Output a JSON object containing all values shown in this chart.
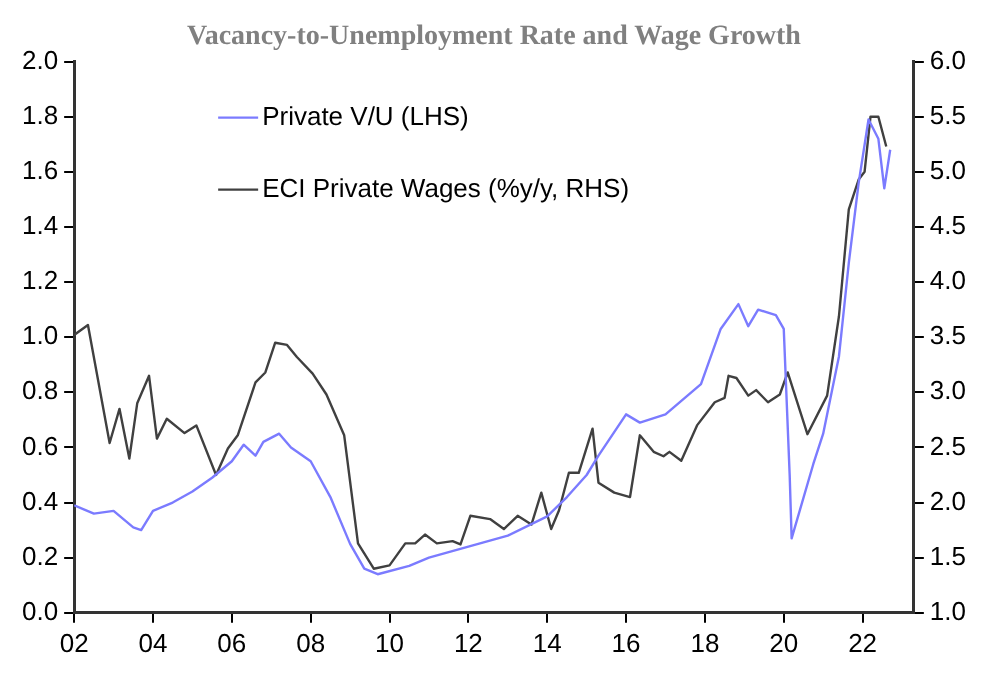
{
  "chart_data": {
    "type": "line",
    "title": "Vacancy-to-Unemployment Rate and Wage Growth",
    "xlim": [
      2002,
      2023.3
    ],
    "xticks": [
      {
        "value": 2002,
        "label": "02"
      },
      {
        "value": 2004,
        "label": "04"
      },
      {
        "value": 2006,
        "label": "06"
      },
      {
        "value": 2008,
        "label": "08"
      },
      {
        "value": 2010,
        "label": "10"
      },
      {
        "value": 2012,
        "label": "12"
      },
      {
        "value": 2014,
        "label": "14"
      },
      {
        "value": 2016,
        "label": "16"
      },
      {
        "value": 2018,
        "label": "18"
      },
      {
        "value": 2020,
        "label": "20"
      },
      {
        "value": 2022,
        "label": "22"
      }
    ],
    "ylim": [
      0,
      2
    ],
    "yticks": [
      {
        "value": 0,
        "label": "0.0"
      },
      0.2,
      0.4,
      0.6,
      0.8,
      {
        "value": 1,
        "label": "1.0"
      },
      1.2,
      1.4,
      1.6,
      1.8,
      {
        "value": 2,
        "label": "2.0"
      }
    ],
    "y2lim": [
      1,
      6
    ],
    "y2ticks": [
      {
        "value": 1,
        "label": "1.0"
      },
      1.5,
      {
        "value": 2,
        "label": "2.0"
      },
      2.5,
      {
        "value": 3,
        "label": "3.0"
      },
      3.5,
      {
        "value": 4,
        "label": "4.0"
      },
      4.5,
      {
        "value": 5,
        "label": "5.0"
      },
      5.5,
      {
        "value": 6,
        "label": "6.0"
      }
    ],
    "grid": false,
    "legend": "top left",
    "marker": "none",
    "line_style": "solid",
    "series": [
      {
        "name": "Private V/U (LHS)",
        "color": "#7b7bff",
        "x": [
          2002,
          2002.5,
          2003,
          2003.5,
          2003.7,
          2004,
          2004.5,
          2005,
          2005.5,
          2006,
          2006.3,
          2006.6,
          2006.8,
          2007.2,
          2007.5,
          2008,
          2008.5,
          2009,
          2009.36,
          2009.7,
          2010.5,
          2011,
          2012,
          2013,
          2014,
          2014.5,
          2015,
          2015.3,
          2016,
          2016.35,
          2017,
          2017.9,
          2018.4,
          2018.85,
          2019.1,
          2019.35,
          2019.8,
          2020,
          2020.15,
          2020.2,
          2020.75,
          2021,
          2021.4,
          2021.65,
          2021.9,
          2022.15,
          2022.4,
          2022.55,
          2022.7
        ],
        "values": [
          0.39,
          0.36,
          0.37,
          0.31,
          0.3,
          0.37,
          0.4,
          0.44,
          0.49,
          0.55,
          0.61,
          0.57,
          0.62,
          0.65,
          0.6,
          0.55,
          0.42,
          0.25,
          0.16,
          0.14,
          0.17,
          0.2,
          0.24,
          0.28,
          0.35,
          0.42,
          0.5,
          0.57,
          0.72,
          0.69,
          0.72,
          0.83,
          1.03,
          1.12,
          1.04,
          1.1,
          1.08,
          1.03,
          0.5,
          0.27,
          0.54,
          0.65,
          0.93,
          1.27,
          1.56,
          1.79,
          1.72,
          1.54,
          1.68
        ]
      },
      {
        "name": "ECI Private Wages (%y/y, RHS)",
        "color": "#404040",
        "axis": "y2",
        "x": [
          2002,
          2002.35,
          2002.9,
          2003.15,
          2003.4,
          2003.6,
          2003.9,
          2004.1,
          2004.35,
          2004.8,
          2005.1,
          2005.6,
          2005.9,
          2006.15,
          2006.6,
          2006.85,
          2007.1,
          2007.4,
          2007.65,
          2008.05,
          2008.4,
          2008.85,
          2009.2,
          2009.6,
          2010,
          2010.4,
          2010.65,
          2010.9,
          2011.2,
          2011.6,
          2011.8,
          2012.05,
          2012.55,
          2012.9,
          2013.25,
          2013.6,
          2013.85,
          2014.1,
          2014.3,
          2014.55,
          2014.8,
          2015.15,
          2015.3,
          2015.7,
          2016.1,
          2016.35,
          2016.7,
          2016.95,
          2017.1,
          2017.4,
          2017.8,
          2018.25,
          2018.5,
          2018.6,
          2018.8,
          2019.1,
          2019.3,
          2019.6,
          2019.9,
          2020.1,
          2020.6,
          2021.1,
          2021.4,
          2021.65,
          2021.9,
          2022.05,
          2022.2,
          2022.4,
          2022.6
        ],
        "values": [
          3.52,
          3.61,
          2.54,
          2.85,
          2.4,
          2.9,
          3.15,
          2.58,
          2.76,
          2.63,
          2.7,
          2.25,
          2.49,
          2.61,
          3.09,
          3.18,
          3.45,
          3.43,
          3.32,
          3.17,
          2.98,
          2.61,
          1.63,
          1.4,
          1.43,
          1.63,
          1.63,
          1.71,
          1.63,
          1.65,
          1.62,
          1.88,
          1.85,
          1.76,
          1.88,
          1.8,
          2.09,
          1.76,
          1.93,
          2.27,
          2.27,
          2.67,
          2.18,
          2.09,
          2.05,
          2.61,
          2.46,
          2.42,
          2.46,
          2.38,
          2.7,
          2.91,
          2.95,
          3.15,
          3.13,
          2.97,
          3.02,
          2.91,
          2.98,
          3.18,
          2.62,
          2.97,
          3.69,
          4.66,
          4.93,
          5,
          5.5,
          5.5,
          5.23
        ]
      }
    ]
  }
}
